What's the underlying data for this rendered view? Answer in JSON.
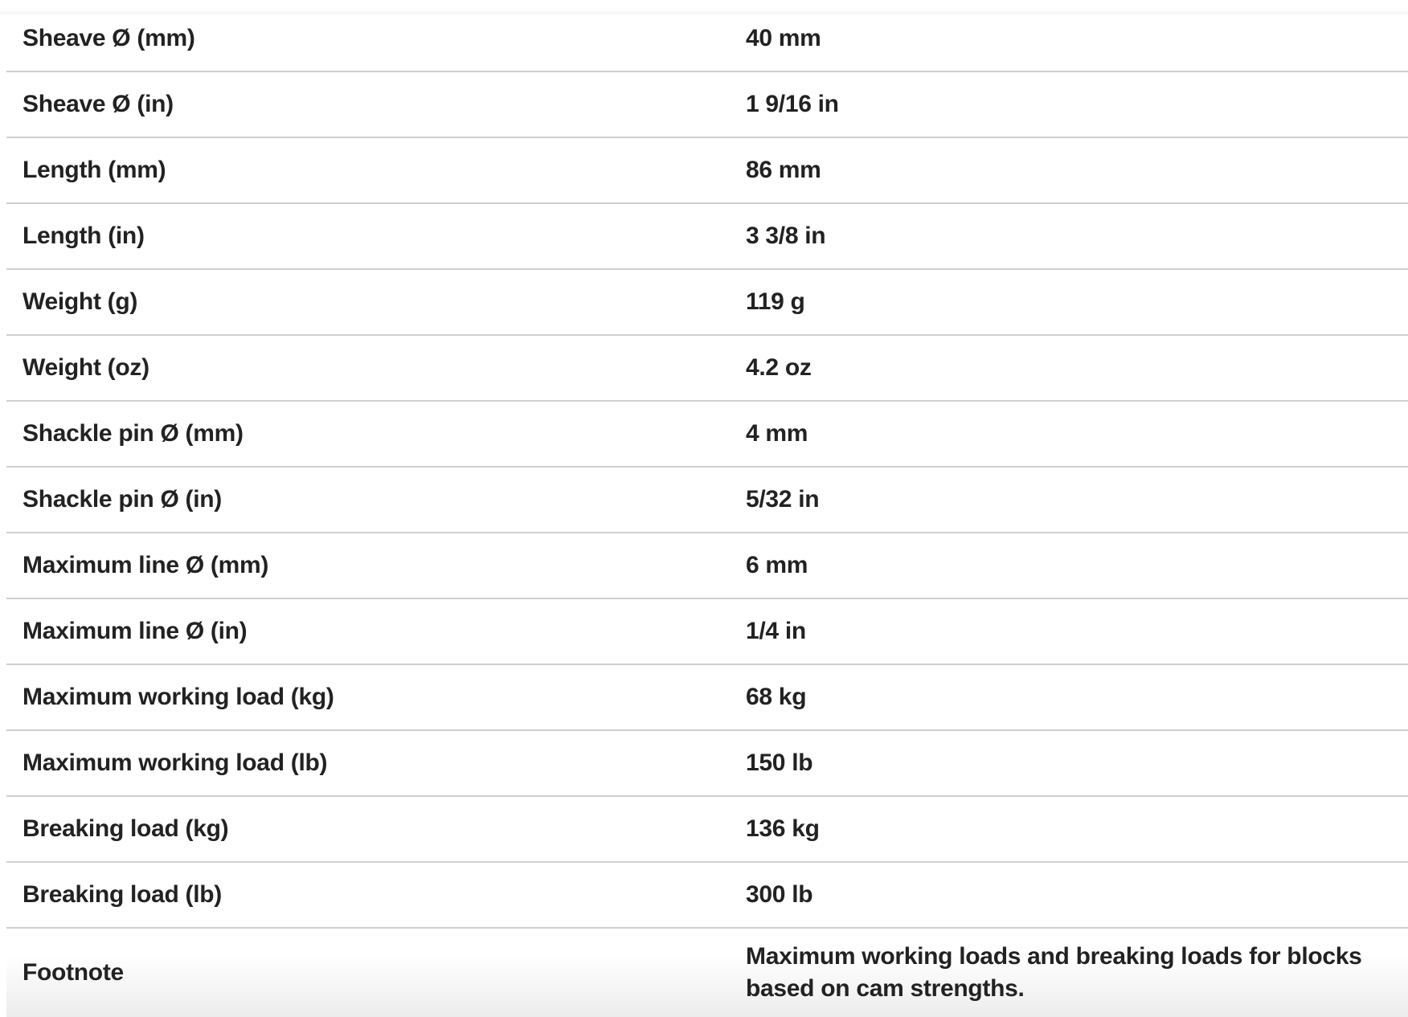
{
  "specs": [
    {
      "label": "Sheave Ø (mm)",
      "value": "40 mm"
    },
    {
      "label": "Sheave Ø (in)",
      "value": "1 9/16 in"
    },
    {
      "label": "Length (mm)",
      "value": "86 mm"
    },
    {
      "label": "Length (in)",
      "value": "3 3/8 in"
    },
    {
      "label": "Weight (g)",
      "value": "119 g"
    },
    {
      "label": "Weight (oz)",
      "value": "4.2 oz"
    },
    {
      "label": "Shackle pin Ø (mm)",
      "value": "4 mm"
    },
    {
      "label": "Shackle pin Ø (in)",
      "value": "5/32 in"
    },
    {
      "label": "Maximum line Ø (mm)",
      "value": "6 mm"
    },
    {
      "label": "Maximum line Ø (in)",
      "value": "1/4 in"
    },
    {
      "label": "Maximum working load (kg)",
      "value": "68 kg"
    },
    {
      "label": "Maximum working load (lb)",
      "value": "150 lb"
    },
    {
      "label": "Breaking load (kg)",
      "value": "136 kg"
    },
    {
      "label": "Breaking load (lb)",
      "value": "300 lb"
    }
  ],
  "footnote": {
    "label": "Footnote",
    "value": "Maximum working loads and breaking loads for blocks based on cam strengths."
  }
}
